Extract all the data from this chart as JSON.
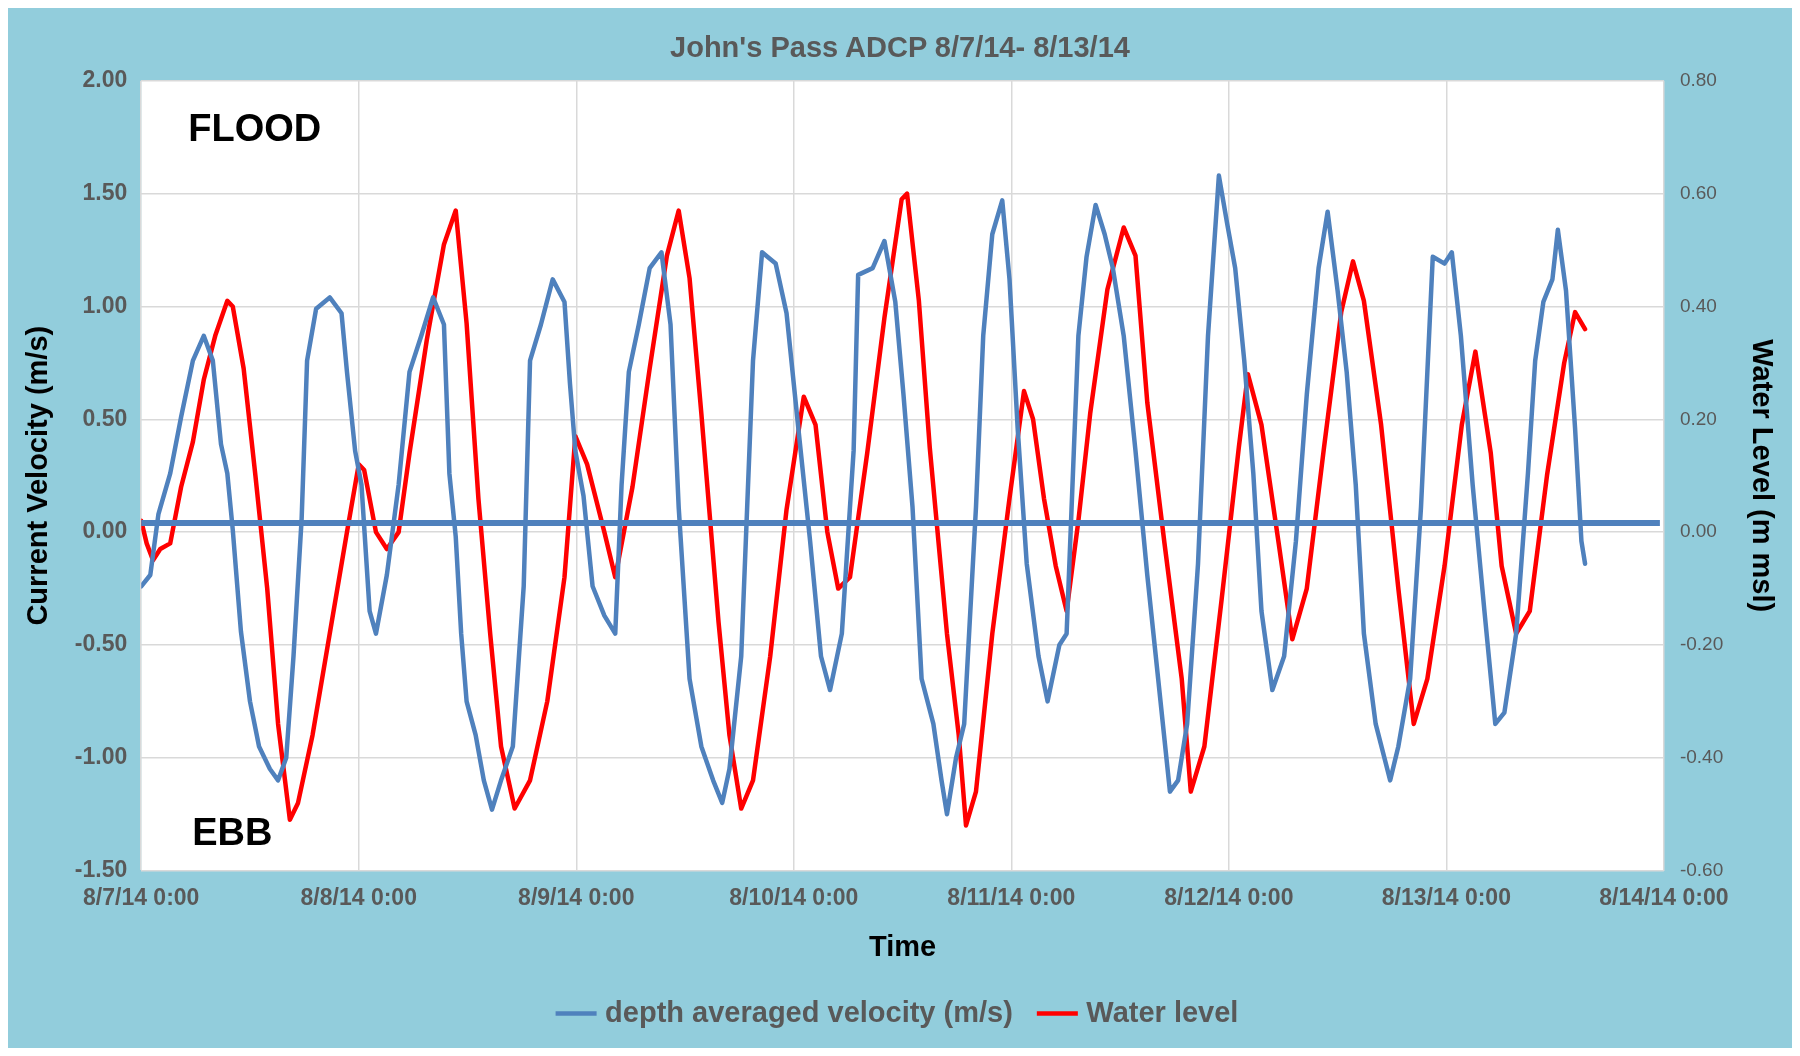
{
  "chart_data": {
    "type": "line",
    "title": "John's Pass ADCP 8/7/14- 8/13/14",
    "xlabel": "Time",
    "ylabel": "Current Velocity (m/s)",
    "y2label": "Water Level (m msl)",
    "annotations": [
      "FLOOD",
      "EBB"
    ],
    "xlim": [
      "--08-07T00:00",
      "--08-14T00:00"
    ],
    "xticks": [
      {
        "value": "--08-07T00:00",
        "label": "8/7/14 0:00"
      },
      {
        "value": "--08-08T00:00",
        "label": "8/8/14 0:00"
      },
      {
        "value": "--08-09T00:00",
        "label": "8/9/14 0:00"
      },
      {
        "value": "--08-10T00:00",
        "label": "8/10/14 0:00"
      },
      {
        "value": "--08-11T00:00",
        "label": "8/11/14 0:00"
      },
      {
        "value": "--08-12T00:00",
        "label": "8/12/14 0:00"
      },
      {
        "value": "--08-13T00:00",
        "label": "8/13/14 0:00"
      },
      {
        "value": "--08-14T00:00",
        "label": "8/14/14 0:00"
      }
    ],
    "ylim": [
      -1.5,
      2
    ],
    "yticks": [
      {
        "value": -1.5,
        "label": "-1.50"
      },
      {
        "value": -1,
        "label": "-1.00"
      },
      {
        "value": -0.5,
        "label": "-0.50"
      },
      {
        "value": 0,
        "label": "0.00"
      },
      {
        "value": 0.5,
        "label": "0.50"
      },
      {
        "value": 1,
        "label": "1.00"
      },
      {
        "value": 1.5,
        "label": "1.50"
      },
      {
        "value": 2,
        "label": "2.00"
      }
    ],
    "y2lim": [
      -0.6,
      0.8
    ],
    "y2ticks": [
      {
        "value": -0.6,
        "label": "-0.60"
      },
      {
        "value": -0.4,
        "label": "-0.40"
      },
      {
        "value": -0.2,
        "label": "-0.20"
      },
      {
        "value": 0,
        "label": "0.00"
      },
      {
        "value": 0.2,
        "label": "0.20"
      },
      {
        "value": 0.4,
        "label": "0.40"
      },
      {
        "value": 0.6,
        "label": "0.60"
      },
      {
        "value": 0.8,
        "label": "0.80"
      }
    ],
    "grid": true,
    "legend": "bottom",
    "marker": "none",
    "line_style": "solid",
    "ref_lines": [
      {
        "axis": "y",
        "value": 0.04,
        "color": "#4f81bd"
      }
    ],
    "series": [
      {
        "name": "depth averaged velocity (m/s)",
        "color": "#4f81bd",
        "x": [
          "--08-07T00:00",
          "--08-07T01:00",
          "--08-07T01:54",
          "--08-07T03:12",
          "--08-07T04:24",
          "--08-07T05:42",
          "--08-07T06:54",
          "--08-07T07:54",
          "--08-07T08:48",
          "--08-07T09:30",
          "--08-07T10:06",
          "--08-07T11:00",
          "--08-07T12:00",
          "--08-07T13:00",
          "--08-07T14:12",
          "--08-07T15:06",
          "--08-07T16:00",
          "--08-07T16:48",
          "--08-07T17:42",
          "--08-07T18:18",
          "--08-07T19:18",
          "--08-07T20:48",
          "--08-07T22:06",
          "--08-07T22:42",
          "--08-07T23:36",
          "--08-08T00:18",
          "--08-08T01:12",
          "--08-08T01:54",
          "--08-08T03:06",
          "--08-08T04:24",
          "--08-08T05:36",
          "--08-08T06:54",
          "--08-08T08:12",
          "--08-08T09:24",
          "--08-08T10:00",
          "--08-08T10:42",
          "--08-08T11:18",
          "--08-08T11:54",
          "--08-08T12:54",
          "--08-08T13:48",
          "--08-08T14:42",
          "--08-08T15:42",
          "--08-08T17:00",
          "--08-08T18:12",
          "--08-08T18:54",
          "--08-08T20:06",
          "--08-08T21:24",
          "--08-08T22:42",
          "--08-08T23:18",
          "--08-08T23:54",
          "--08-09T00:48",
          "--08-09T01:48",
          "--08-09T03:06",
          "--08-09T04:18",
          "--08-09T05:00",
          "--08-09T05:48",
          "--08-09T06:54",
          "--08-09T08:06",
          "--08-09T09:24",
          "--08-09T10:24",
          "--08-09T11:18",
          "--08-09T12:30",
          "--08-09T13:48",
          "--08-09T15:06",
          "--08-09T16:06",
          "--08-09T16:54",
          "--08-09T18:12",
          "--08-09T19:30",
          "--08-09T20:30",
          "--08-09T22:00",
          "--08-09T23:12",
          "--08-10T00:30",
          "--08-10T01:48",
          "--08-10T03:00",
          "--08-10T04:00",
          "--08-10T05:18",
          "--08-10T06:36",
          "--08-10T07:06",
          "--08-10T08:42",
          "--08-10T10:00",
          "--08-10T11:12",
          "--08-10T12:06",
          "--08-10T13:06",
          "--08-10T14:06",
          "--08-10T15:24",
          "--08-10T16:18",
          "--08-10T16:54",
          "--08-10T17:54",
          "--08-10T18:48",
          "--08-10T20:06",
          "--08-10T20:54",
          "--08-10T21:54",
          "--08-10T23:00",
          "--08-10T23:48",
          "--08-11T00:42",
          "--08-11T01:42",
          "--08-11T03:00",
          "--08-11T04:00",
          "--08-11T05:18",
          "--08-11T06:06",
          "--08-11T07:24",
          "--08-11T08:18",
          "--08-11T09:18",
          "--08-11T10:18",
          "--08-11T11:12",
          "--08-11T12:24",
          "--08-11T13:42",
          "--08-11T15:00",
          "--08-11T16:12",
          "--08-11T17:30",
          "--08-11T18:24",
          "--08-11T19:24",
          "--08-11T20:36",
          "--08-11T21:42",
          "--08-11T22:54",
          "--08-11T23:48",
          "--08-12T00:42",
          "--08-12T01:42",
          "--08-12T02:42",
          "--08-12T03:36",
          "--08-12T04:48",
          "--08-12T06:06",
          "--08-12T07:24",
          "--08-12T08:36",
          "--08-12T09:54",
          "--08-12T10:54",
          "--08-12T12:00",
          "--08-12T13:00",
          "--08-12T14:00",
          "--08-12T14:54",
          "--08-12T16:12",
          "--08-12T17:48",
          "--08-12T18:42",
          "--08-12T20:00",
          "--08-12T21:12",
          "--08-12T22:30",
          "--08-12T23:48",
          "--08-13T00:36",
          "--08-13T01:36",
          "--08-13T02:54",
          "--08-13T04:12",
          "--08-13T05:24",
          "--08-13T06:24",
          "--08-13T07:42",
          "--08-13T09:00",
          "--08-13T09:48",
          "--08-13T10:42",
          "--08-13T11:42",
          "--08-13T12:18",
          "--08-13T13:12",
          "--08-13T14:12",
          "--08-13T14:54",
          "--08-13T15:18"
        ],
        "values": [
          -0.24,
          -0.19,
          0.08,
          0.26,
          0.51,
          0.76,
          0.87,
          0.76,
          0.39,
          0.26,
          0.01,
          -0.44,
          -0.75,
          -0.95,
          -1.05,
          -1.1,
          -1.0,
          -0.55,
          0.06,
          0.76,
          0.99,
          1.04,
          0.97,
          0.71,
          0.36,
          0.21,
          -0.35,
          -0.45,
          -0.19,
          0.21,
          0.71,
          0.87,
          1.04,
          0.92,
          0.26,
          -0.02,
          -0.45,
          -0.75,
          -0.9,
          -1.1,
          -1.23,
          -1.1,
          -0.95,
          -0.24,
          0.76,
          0.92,
          1.12,
          1.02,
          0.66,
          0.36,
          0.16,
          -0.24,
          -0.37,
          -0.45,
          0.21,
          0.71,
          0.92,
          1.17,
          1.24,
          0.92,
          0.11,
          -0.65,
          -0.95,
          -1.1,
          -1.2,
          -1.05,
          -0.55,
          0.76,
          1.24,
          1.19,
          0.97,
          0.46,
          -0.04,
          -0.55,
          -0.7,
          -0.45,
          0.36,
          1.14,
          1.17,
          1.29,
          1.02,
          0.61,
          0.11,
          -0.65,
          -0.85,
          -1.1,
          -1.25,
          -1.0,
          -0.85,
          0.11,
          0.87,
          1.32,
          1.47,
          1.12,
          0.46,
          -0.14,
          -0.55,
          -0.75,
          -0.5,
          -0.45,
          0.87,
          1.22,
          1.45,
          1.32,
          1.17,
          0.87,
          0.36,
          -0.19,
          -0.65,
          -1.15,
          -1.1,
          -0.85,
          -0.14,
          0.87,
          1.58,
          1.37,
          1.17,
          0.76,
          0.26,
          -0.35,
          -0.7,
          -0.55,
          -0.04,
          0.61,
          1.17,
          1.42,
          1.07,
          0.71,
          0.21,
          -0.45,
          -0.85,
          -1.1,
          -0.95,
          -0.65,
          0.11,
          1.22,
          1.19,
          1.24,
          0.87,
          0.21,
          -0.35,
          -0.85,
          -0.8,
          -0.45,
          0.26,
          0.76,
          1.02,
          1.12,
          1.34,
          1.07,
          0.46,
          -0.04,
          -0.14
        ]
      },
      {
        "name": "Water level",
        "color": "#ff0000",
        "axis": "y2",
        "x": [
          "--08-07T00:00",
          "--08-07T00:36",
          "--08-07T01:18",
          "--08-07T02:06",
          "--08-07T03:12",
          "--08-07T04:24",
          "--08-07T05:42",
          "--08-07T06:54",
          "--08-07T08:12",
          "--08-07T09:30",
          "--08-07T10:06",
          "--08-07T11:18",
          "--08-07T12:36",
          "--08-07T13:54",
          "--08-07T15:06",
          "--08-07T16:24",
          "--08-07T17:18",
          "--08-07T18:54",
          "--08-07T20:48",
          "--08-07T22:42",
          "--08-08T00:00",
          "--08-08T00:36",
          "--08-08T01:54",
          "--08-08T03:06",
          "--08-08T04:24",
          "--08-08T05:36",
          "--08-08T07:30",
          "--08-08T09:24",
          "--08-08T10:42",
          "--08-08T11:54",
          "--08-08T13:12",
          "--08-08T14:30",
          "--08-08T15:42",
          "--08-08T17:12",
          "--08-08T18:54",
          "--08-08T20:48",
          "--08-08T22:42",
          "--08-08T23:54",
          "--08-09T01:12",
          "--08-09T03:06",
          "--08-09T04:18",
          "--08-09T06:12",
          "--08-09T08:06",
          "--08-09T10:00",
          "--08-09T11:18",
          "--08-09T12:30",
          "--08-09T13:48",
          "--08-09T15:42",
          "--08-09T16:54",
          "--08-09T18:12",
          "--08-09T19:30",
          "--08-09T21:24",
          "--08-09T23:12",
          "--08-10T01:06",
          "--08-10T02:24",
          "--08-10T03:42",
          "--08-10T04:54",
          "--08-10T06:12",
          "--08-10T08:06",
          "--08-10T10:00",
          "--08-10T11:54",
          "--08-10T12:30",
          "--08-10T13:48",
          "--08-10T15:00",
          "--08-10T16:54",
          "--08-10T18:12",
          "--08-10T19:00",
          "--08-10T20:06",
          "--08-10T21:54",
          "--08-10T23:48",
          "--08-11T01:24",
          "--08-11T02:24",
          "--08-11T03:36",
          "--08-11T04:54",
          "--08-11T06:06",
          "--08-11T07:24",
          "--08-11T08:42",
          "--08-11T10:36",
          "--08-11T12:24",
          "--08-11T13:42",
          "--08-11T15:00",
          "--08-11T16:54",
          "--08-11T18:48",
          "--08-11T19:48",
          "--08-11T21:18",
          "--08-11T23:12",
          "--08-12T01:06",
          "--08-12T02:06",
          "--08-12T03:36",
          "--08-12T05:30",
          "--08-12T07:00",
          "--08-12T08:36",
          "--08-12T10:30",
          "--08-12T12:24",
          "--08-12T13:42",
          "--08-12T14:54",
          "--08-12T16:48",
          "--08-12T18:42",
          "--08-12T20:24",
          "--08-12T21:54",
          "--08-12T23:48",
          "--08-13T01:42",
          "--08-13T03:12",
          "--08-13T04:54",
          "--08-13T06:06",
          "--08-13T07:42",
          "--08-13T09:12",
          "--08-13T11:06",
          "--08-13T13:00",
          "--08-13T14:12",
          "--08-13T15:18"
        ],
        "values": [
          0.02,
          -0.02,
          -0.05,
          -0.03,
          -0.02,
          0.08,
          0.16,
          0.27,
          0.35,
          0.41,
          0.4,
          0.29,
          0.1,
          -0.1,
          -0.34,
          -0.51,
          -0.48,
          -0.36,
          -0.18,
          0.0,
          0.12,
          0.11,
          0.0,
          -0.03,
          0.0,
          0.14,
          0.34,
          0.51,
          0.57,
          0.37,
          0.06,
          -0.18,
          -0.38,
          -0.49,
          -0.44,
          -0.3,
          -0.08,
          0.17,
          0.12,
          0.0,
          -0.08,
          0.08,
          0.29,
          0.49,
          0.57,
          0.45,
          0.21,
          -0.16,
          -0.36,
          -0.49,
          -0.44,
          -0.22,
          0.04,
          0.24,
          0.19,
          0.0,
          -0.1,
          -0.08,
          0.14,
          0.38,
          0.59,
          0.6,
          0.41,
          0.15,
          -0.18,
          -0.36,
          -0.52,
          -0.46,
          -0.18,
          0.06,
          0.25,
          0.2,
          0.06,
          -0.06,
          -0.14,
          0.02,
          0.21,
          0.43,
          0.54,
          0.49,
          0.23,
          -0.02,
          -0.26,
          -0.46,
          -0.38,
          -0.12,
          0.15,
          0.28,
          0.19,
          -0.02,
          -0.19,
          -0.1,
          0.15,
          0.39,
          0.48,
          0.41,
          0.19,
          -0.1,
          -0.34,
          -0.26,
          -0.06,
          0.19,
          0.32,
          0.14,
          -0.06,
          -0.18,
          -0.14,
          0.1,
          0.3,
          0.39,
          0.36
        ]
      }
    ]
  }
}
